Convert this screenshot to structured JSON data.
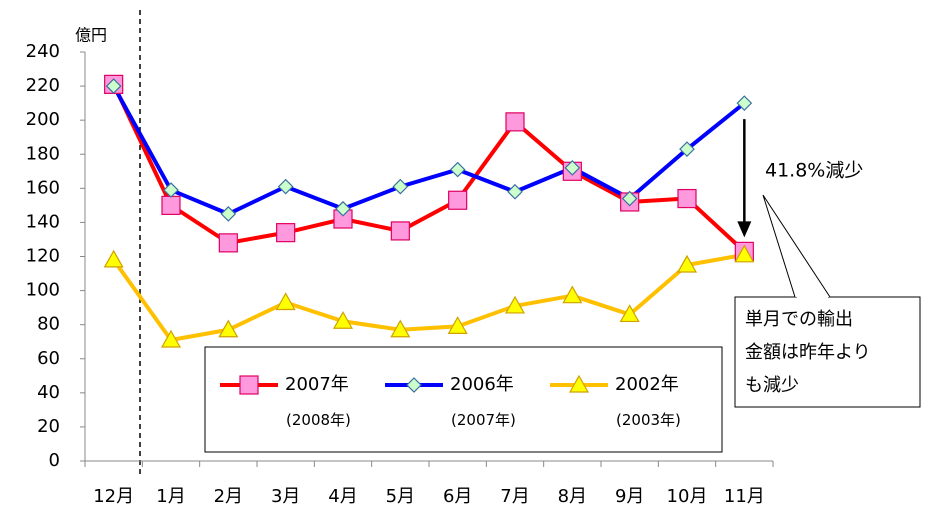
{
  "chart_data": {
    "type": "line",
    "y_unit": "億円",
    "categories": [
      "12月",
      "1月",
      "2月",
      "3月",
      "4月",
      "5月",
      "6月",
      "7月",
      "8月",
      "9月",
      "10月",
      "11月"
    ],
    "series": [
      {
        "name": "2007年(2008年)",
        "color": "#ff0000",
        "marker": "square",
        "marker_color": "#ff99dd",
        "values": [
          221,
          150,
          128,
          134,
          142,
          135,
          153,
          199,
          170,
          152,
          154,
          123
        ]
      },
      {
        "name": "2006年(2007年)",
        "color": "#0000ff",
        "marker": "diamond",
        "marker_color": "#ccffcc",
        "values": [
          220,
          159,
          145,
          161,
          148,
          161,
          171,
          158,
          172,
          154,
          183,
          210
        ]
      },
      {
        "name": "2002年(2003年)",
        "color": "#ffc000",
        "marker": "triangle",
        "marker_color": "#ffff00",
        "values": [
          118,
          71,
          77,
          93,
          82,
          77,
          79,
          91,
          97,
          86,
          115,
          121
        ]
      }
    ],
    "ylim": [
      0,
      240
    ],
    "yticks": [
      0,
      20,
      40,
      60,
      80,
      100,
      120,
      140,
      160,
      180,
      200,
      220,
      240
    ],
    "reduction_label": "41.8%減少",
    "callout_lines": [
      "単月での輸出",
      "金額は昨年より",
      "も減少"
    ]
  }
}
